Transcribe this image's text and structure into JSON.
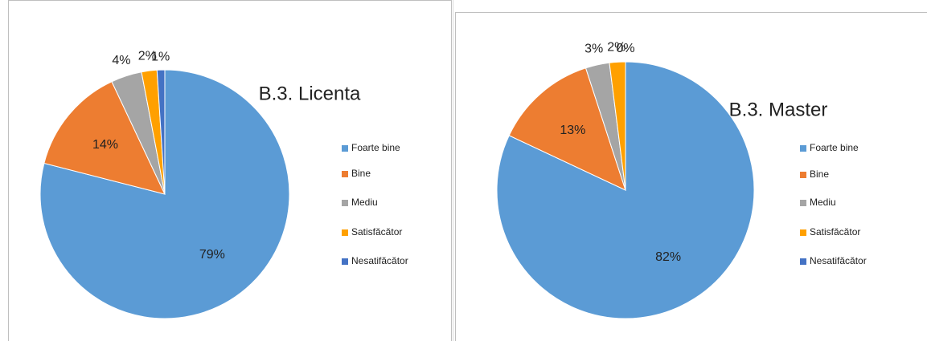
{
  "chart_data": [
    {
      "type": "pie",
      "title": "B.3. Licenta",
      "categories": [
        "Foarte bine",
        "Bine",
        "Mediu",
        "Satisfăcător",
        "Nesatifăcător"
      ],
      "values": [
        79,
        14,
        4,
        2,
        1
      ],
      "value_labels": [
        "79%",
        "14%",
        "4%",
        "2%",
        "1%"
      ],
      "colors": [
        "#5b9bd5",
        "#ed7d31",
        "#a5a5a5",
        "#ffa000",
        "#4472c4"
      ],
      "legend": "right"
    },
    {
      "type": "pie",
      "title": "B.3. Master",
      "categories": [
        "Foarte bine",
        "Bine",
        "Mediu",
        "Satisfăcător",
        "Nesatifăcător"
      ],
      "values": [
        82,
        13,
        3,
        2,
        0
      ],
      "value_labels": [
        "82%",
        "13%",
        "3%",
        "2%",
        "0%"
      ],
      "colors": [
        "#5b9bd5",
        "#ed7d31",
        "#a5a5a5",
        "#ffa000",
        "#4472c4"
      ],
      "legend": "right"
    }
  ]
}
